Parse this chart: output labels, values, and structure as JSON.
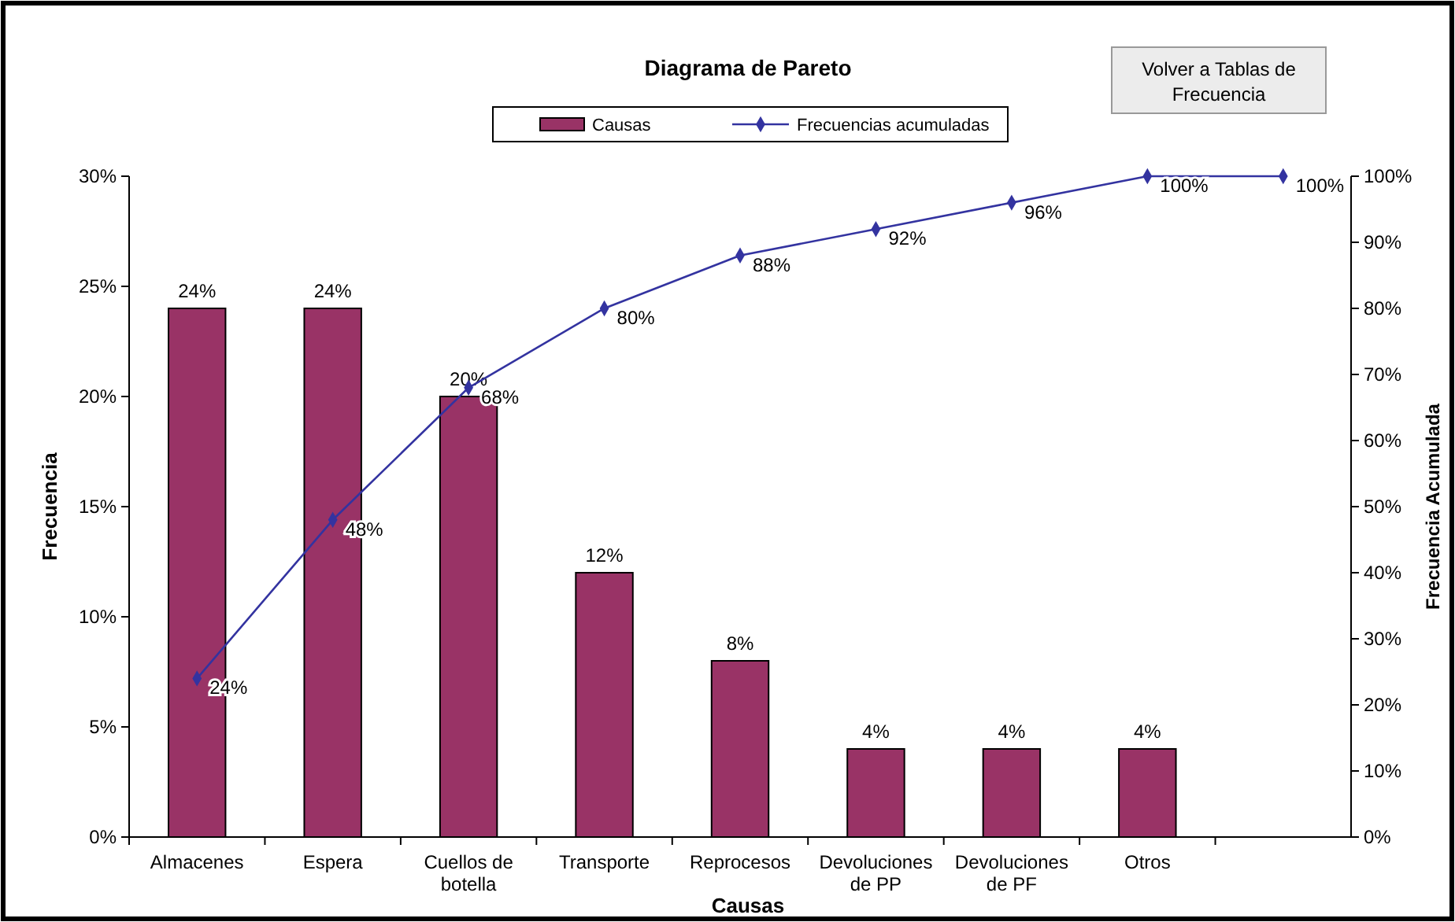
{
  "chart_data": {
    "type": "bar",
    "title": "Diagrama de Pareto",
    "xlabel": "Causas",
    "ylabel": "Frecuencia",
    "y2label": "Frecuencia Acumulada",
    "categories": [
      "Almacenes",
      "Espera",
      "Cuellos de botella",
      "Transporte",
      "Reprocesos",
      "Devoluciones de PP",
      "Devoluciones de PF",
      "Otros",
      null
    ],
    "series": [
      {
        "name": "Causas",
        "color": "#993366",
        "values": [
          24,
          24,
          20,
          12,
          8,
          4,
          4,
          4,
          null
        ],
        "value_labels": [
          "24%",
          "24%",
          "20%",
          "12%",
          "8%",
          "4%",
          "4%",
          "4%",
          null
        ]
      },
      {
        "name": "Frecuencias acumuladas",
        "type": "line",
        "axis": "y2",
        "color": "#3333a0",
        "marker": "diamond",
        "values": [
          24,
          48,
          68,
          80,
          88,
          92,
          96,
          100,
          100
        ],
        "value_labels": [
          "24%",
          "48%",
          "68%",
          "80%",
          "88%",
          "92%",
          "96%",
          "100%",
          "100%"
        ]
      }
    ],
    "ylim": [
      0,
      30
    ],
    "yticks": [
      {
        "value": 0,
        "label": "0%"
      },
      {
        "value": 5,
        "label": "5%"
      },
      {
        "value": 10,
        "label": "10%"
      },
      {
        "value": 15,
        "label": "15%"
      },
      {
        "value": 20,
        "label": "20%"
      },
      {
        "value": 25,
        "label": "25%"
      },
      {
        "value": 30,
        "label": "30%"
      }
    ],
    "y2lim": [
      0,
      100
    ],
    "y2ticks": [
      {
        "value": 0,
        "label": "0%"
      },
      {
        "value": 10,
        "label": "10%"
      },
      {
        "value": 20,
        "label": "20%"
      },
      {
        "value": 30,
        "label": "30%"
      },
      {
        "value": 40,
        "label": "40%"
      },
      {
        "value": 50,
        "label": "50%"
      },
      {
        "value": 60,
        "label": "60%"
      },
      {
        "value": 70,
        "label": "70%"
      },
      {
        "value": 80,
        "label": "80%"
      },
      {
        "value": 90,
        "label": "90%"
      },
      {
        "value": 100,
        "label": "100%"
      }
    ],
    "legend": "top",
    "grid": false,
    "annotations": [
      "Volver a Tablas de Frecuencia"
    ]
  }
}
